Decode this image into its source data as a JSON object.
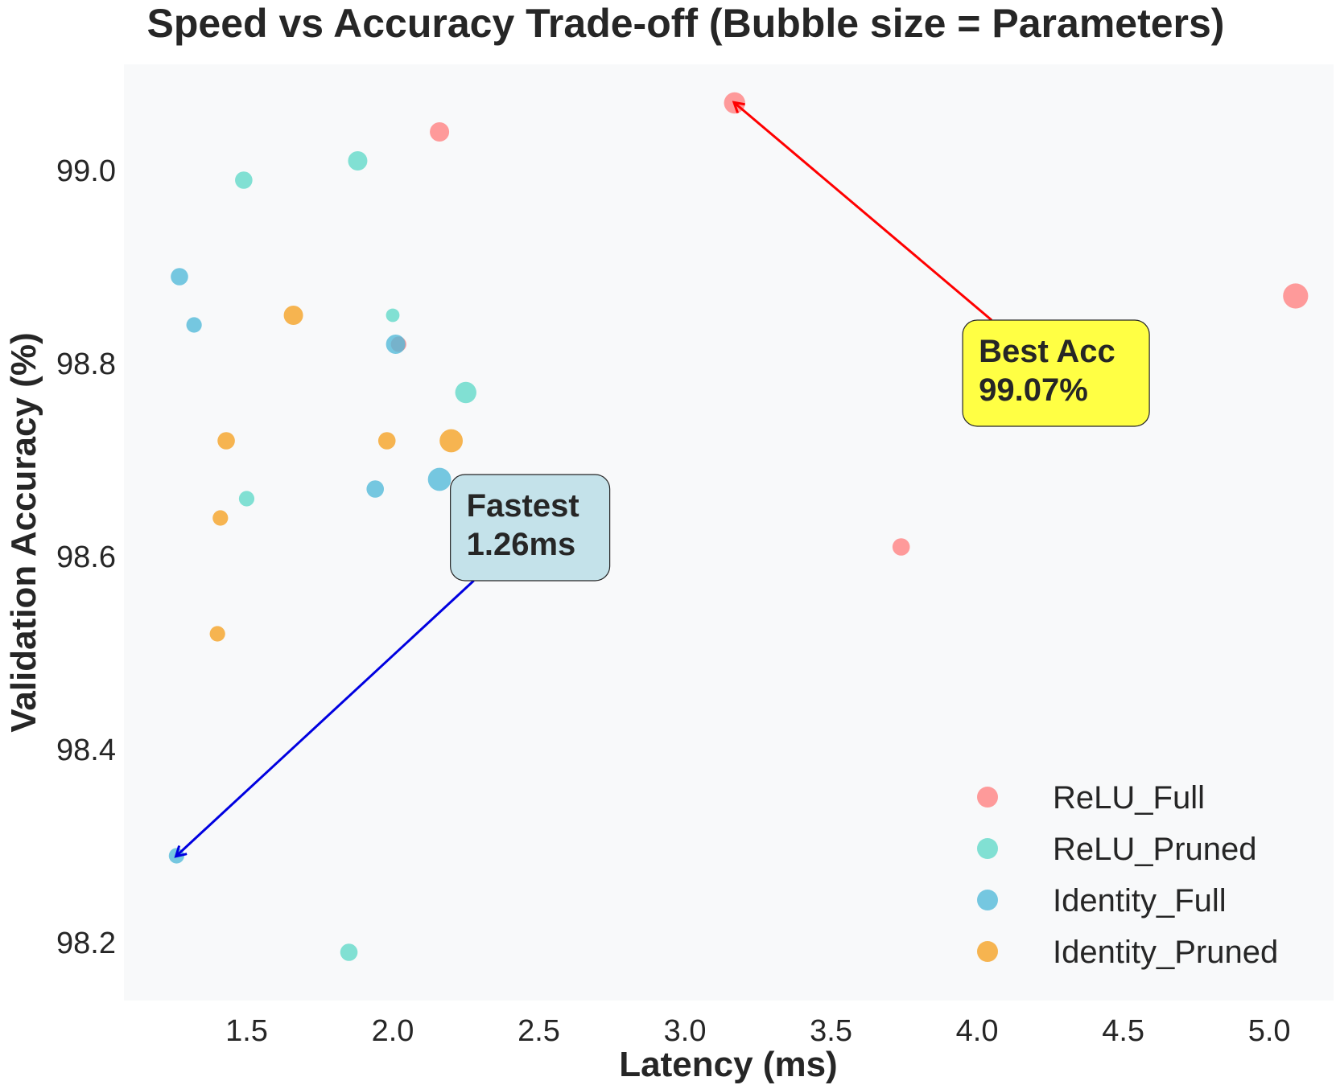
{
  "chart_data": {
    "type": "scatter",
    "title": "Speed vs Accuracy Trade-off (Bubble size = Parameters)",
    "xlabel": "Latency (ms)",
    "ylabel": "Validation Accuracy (%)",
    "xlim": [
      1.08,
      5.22
    ],
    "ylim": [
      98.14,
      99.11
    ],
    "xticks": [
      "1.5",
      "2.0",
      "2.5",
      "3.0",
      "3.5",
      "4.0",
      "4.5",
      "5.0"
    ],
    "yticks": [
      "98.2",
      "98.4",
      "98.6",
      "98.8",
      "99.0"
    ],
    "grid": false,
    "legend": "lower-right",
    "series": [
      {
        "name": "ReLU_Full",
        "color": "#ff7f7f",
        "points": [
          {
            "x": 2.16,
            "y": 99.04,
            "size": 1.0
          },
          {
            "x": 3.17,
            "y": 99.07,
            "size": 1.1
          },
          {
            "x": 5.09,
            "y": 98.87,
            "size": 1.3
          },
          {
            "x": 2.02,
            "y": 98.82,
            "size": 0.8
          },
          {
            "x": 2.4,
            "y": 98.67,
            "size": 0.8
          },
          {
            "x": 3.74,
            "y": 98.61,
            "size": 0.9
          }
        ]
      },
      {
        "name": "ReLU_Pruned",
        "color": "#5fd8c8",
        "points": [
          {
            "x": 1.49,
            "y": 98.99,
            "size": 0.9
          },
          {
            "x": 1.88,
            "y": 99.01,
            "size": 1.0
          },
          {
            "x": 2.0,
            "y": 98.85,
            "size": 0.7
          },
          {
            "x": 2.25,
            "y": 98.77,
            "size": 1.1
          },
          {
            "x": 1.5,
            "y": 98.66,
            "size": 0.8
          },
          {
            "x": 1.85,
            "y": 98.19,
            "size": 0.9
          }
        ]
      },
      {
        "name": "Identity_Full",
        "color": "#4fb8d8",
        "points": [
          {
            "x": 1.27,
            "y": 98.89,
            "size": 0.9
          },
          {
            "x": 1.32,
            "y": 98.84,
            "size": 0.8
          },
          {
            "x": 2.01,
            "y": 98.82,
            "size": 1.0
          },
          {
            "x": 1.94,
            "y": 98.67,
            "size": 0.9
          },
          {
            "x": 2.16,
            "y": 98.68,
            "size": 1.2
          },
          {
            "x": 1.26,
            "y": 98.29,
            "size": 0.8
          }
        ]
      },
      {
        "name": "Identity_Pruned",
        "color": "#f5a020",
        "points": [
          {
            "x": 1.66,
            "y": 98.85,
            "size": 1.0
          },
          {
            "x": 1.43,
            "y": 98.72,
            "size": 0.9
          },
          {
            "x": 1.98,
            "y": 98.72,
            "size": 0.9
          },
          {
            "x": 2.2,
            "y": 98.72,
            "size": 1.2
          },
          {
            "x": 1.41,
            "y": 98.64,
            "size": 0.8
          },
          {
            "x": 1.4,
            "y": 98.52,
            "size": 0.8
          }
        ]
      }
    ],
    "annotations": [
      {
        "id": "best-acc",
        "lines": [
          "Best Acc",
          "99.07%"
        ],
        "target": {
          "x": 3.17,
          "y": 99.07
        },
        "text_anchor": {
          "x": 4.27,
          "y": 98.79
        },
        "arrow_color": "#ff0000",
        "box_color": "#ffff44"
      },
      {
        "id": "fastest",
        "lines": [
          "Fastest",
          "1.26ms"
        ],
        "target": {
          "x": 1.26,
          "y": 98.29
        },
        "text_anchor": {
          "x": 2.47,
          "y": 98.63
        },
        "arrow_color": "#0000e0",
        "box_color": "#c4e2ea"
      }
    ]
  }
}
